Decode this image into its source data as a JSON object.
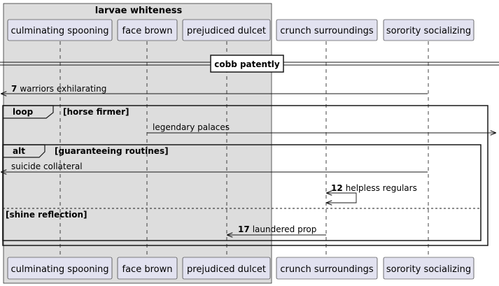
{
  "box": {
    "title": "larvae whiteness"
  },
  "participants": [
    {
      "id": "p1",
      "label": "culminating spooning"
    },
    {
      "id": "p2",
      "label": "face brown"
    },
    {
      "id": "p3",
      "label": "prejudiced dulcet"
    },
    {
      "id": "p4",
      "label": "crunch surroundings"
    },
    {
      "id": "p5",
      "label": "sorority socializing"
    }
  ],
  "divider": {
    "label": "cobb patently"
  },
  "messages": [
    {
      "num": "7",
      "text": "warriors exhilarating"
    },
    {
      "num": "",
      "text": "legendary palaces"
    },
    {
      "num": "",
      "text": "suicide collateral"
    },
    {
      "num": "12",
      "text": "helpless regulars"
    },
    {
      "num": "17",
      "text": "laundered prop"
    }
  ],
  "fragments": {
    "loop": {
      "keyword": "loop",
      "guard": "[horse firmer]"
    },
    "alt": {
      "keyword": "alt",
      "guard": "[guaranteeing routines]",
      "else_guard": "[shine reflection]"
    }
  },
  "colors": {
    "participant_fill": "#E2E2F0",
    "participant_border": "#181818",
    "box_fill": "#DDDDDD",
    "line": "#181818"
  }
}
